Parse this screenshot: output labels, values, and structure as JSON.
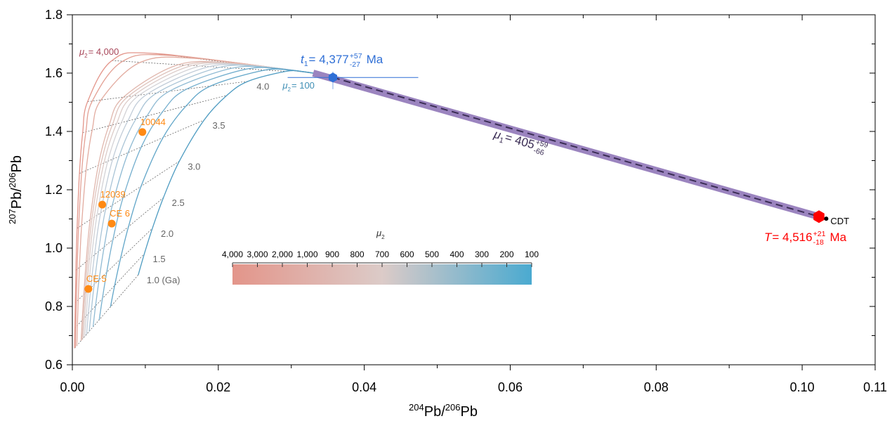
{
  "chart_data": {
    "type": "line",
    "xlabel": [
      "204",
      "Pb/",
      "206",
      "Pb"
    ],
    "ylabel": [
      "207",
      "Pb/",
      "206",
      "Pb"
    ],
    "xlim": [
      0,
      0.11
    ],
    "ylim": [
      0.6,
      1.8
    ],
    "xticks": [
      {
        "value": 0,
        "label": "0.00"
      },
      0.02,
      0.04,
      0.06,
      0.08,
      {
        "value": 0.1,
        "label": "0.10"
      },
      0.11
    ],
    "yticks": [
      0.6,
      0.8,
      {
        "value": 1,
        "label": "1.0"
      },
      1.2,
      1.4,
      1.6,
      1.8
    ],
    "xminor": [
      0.01,
      0.03,
      0.05,
      0.07,
      0.09
    ],
    "yminor": [
      0.7,
      0.9,
      1.1,
      1.3,
      1.5,
      1.7
    ],
    "series": [
      {
        "color": "#e3958a",
        "x": [
          0.033,
          0.01141,
          0.00543,
          0.00209,
          0.00142,
          0.00097,
          0.00065,
          0.00049,
          0.00041,
          0.00035,
          0.00031
        ],
        "y": [
          1.6,
          1.667,
          1.643,
          1.502,
          1.396,
          1.256,
          1.068,
          0.924,
          0.813,
          0.726,
          0.657
        ]
      },
      {
        "color": "#e3a094",
        "x": [
          0.033,
          0.01364,
          0.00686,
          0.00273,
          0.00186,
          0.00128,
          0.00086,
          0.00066,
          0.00054,
          0.00046,
          0.00041
        ],
        "y": [
          1.6,
          1.66,
          1.64,
          1.504,
          1.399,
          1.26,
          1.072,
          0.927,
          0.816,
          0.729,
          0.66
        ]
      },
      {
        "color": "#e2ab9f",
        "x": [
          0.033,
          0.01696,
          0.00932,
          0.00393,
          0.00272,
          0.00188,
          0.00127,
          0.00097,
          0.0008,
          0.00069,
          0.00061
        ],
        "y": [
          1.6,
          1.65,
          1.637,
          1.508,
          1.405,
          1.266,
          1.078,
          0.934,
          0.822,
          0.735,
          0.665
        ]
      },
      {
        "color": "#e0b6ac",
        "x": [
          0.033,
          0.0224,
          0.01454,
          0.00703,
          0.00502,
          0.00356,
          0.00244,
          0.00189,
          0.00157,
          0.00135,
          0.0012
        ],
        "y": [
          1.6,
          1.633,
          1.629,
          1.518,
          1.42,
          1.284,
          1.098,
          0.953,
          0.841,
          0.752,
          0.682
        ]
      },
      {
        "color": "#dec2bb",
        "x": [
          0.033,
          0.02314,
          0.0154,
          0.00763,
          0.00549,
          0.00391,
          0.00269,
          0.00209,
          0.00173,
          0.00149,
          0.00133
        ],
        "y": [
          1.6,
          1.63,
          1.627,
          1.52,
          1.423,
          1.288,
          1.102,
          0.957,
          0.845,
          0.756,
          0.686
        ]
      },
      {
        "color": "#dccbc8",
        "x": [
          0.033,
          0.02394,
          0.01637,
          0.00834,
          0.00605,
          0.00433,
          0.003,
          0.00233,
          0.00193,
          0.00167,
          0.00148
        ],
        "y": [
          1.6,
          1.628,
          1.626,
          1.522,
          1.426,
          1.292,
          1.107,
          0.962,
          0.85,
          0.761,
          0.691
        ]
      },
      {
        "color": "#d3d2d6",
        "x": [
          0.033,
          0.02479,
          0.01747,
          0.0092,
          0.00673,
          0.00486,
          0.00338,
          0.00264,
          0.00219,
          0.0019,
          0.00169
        ],
        "y": [
          1.6,
          1.625,
          1.624,
          1.525,
          1.431,
          1.298,
          1.113,
          0.969,
          0.856,
          0.767,
          0.696
        ]
      },
      {
        "color": "#c1ccd8",
        "x": [
          0.033,
          0.0257,
          0.01873,
          0.01026,
          0.0076,
          0.00553,
          0.00388,
          0.00304,
          0.00253,
          0.00219,
          0.00195
        ],
        "y": [
          1.6,
          1.622,
          1.622,
          1.528,
          1.436,
          1.305,
          1.121,
          0.977,
          0.864,
          0.775,
          0.704
        ]
      },
      {
        "color": "#a9c4d6",
        "x": [
          0.033,
          0.02669,
          0.02019,
          0.01159,
          0.00872,
          0.00642,
          0.00455,
          0.00358,
          0.00299,
          0.0026,
          0.00231
        ],
        "y": [
          1.6,
          1.62,
          1.62,
          1.532,
          1.443,
          1.315,
          1.132,
          0.988,
          0.875,
          0.786,
          0.714
        ]
      },
      {
        "color": "#8fbad3",
        "x": [
          0.033,
          0.02775,
          0.02189,
          0.01331,
          0.01022,
          0.00766,
          0.00549,
          0.00436,
          0.00366,
          0.00318,
          0.00284
        ],
        "y": [
          1.6,
          1.616,
          1.617,
          1.538,
          1.453,
          1.328,
          1.148,
          1.004,
          0.891,
          0.802,
          0.73
        ]
      },
      {
        "color": "#75afce",
        "x": [
          0.033,
          0.02889,
          0.0239,
          0.01565,
          0.01235,
          0.00947,
          0.00694,
          0.00556,
          0.0047,
          0.00411,
          0.00368
        ],
        "y": [
          1.6,
          1.613,
          1.614,
          1.545,
          1.467,
          1.348,
          1.172,
          1.029,
          0.916,
          0.826,
          0.754
        ]
      },
      {
        "color": "#60a5c8",
        "x": [
          0.033,
          0.03015,
          0.02632,
          0.01897,
          0.01561,
          0.01243,
          0.00942,
          0.0077,
          0.00658,
          0.0058,
          0.00523
        ],
        "y": [
          1.6,
          1.609,
          1.61,
          1.556,
          1.488,
          1.379,
          1.212,
          1.074,
          0.962,
          0.872,
          0.799
        ]
      },
      {
        "color": "#4d9bc1",
        "x": [
          0.033,
          0.03151,
          0.02928,
          0.02409,
          0.02119,
          0.01805,
          0.01466,
          0.01248,
          0.01097,
          0.00987,
          0.00903
        ],
        "y": [
          1.6,
          1.605,
          1.606,
          1.572,
          1.524,
          1.439,
          1.298,
          1.173,
          1.068,
          0.981,
          0.908
        ]
      }
    ],
    "age_labels": [
      null,
      null,
      null,
      "4.0",
      null,
      "3.5",
      "3.0",
      "2.5",
      "2.0",
      "1.5",
      "1.0 (Ga)"
    ],
    "curve_labels": {
      "max": {
        "symbol": "μ",
        "sub": "2",
        "text": "= 4,000",
        "color": "#a8475a"
      },
      "min": {
        "symbol": "μ",
        "sub": "2",
        "text": "= 100",
        "color": "#3f8fb5"
      }
    },
    "samples": {
      "color": "#ff8a14",
      "points": [
        {
          "label": "10044",
          "x": 0.0096,
          "y": 1.398
        },
        {
          "label": "12039",
          "x": 0.0041,
          "y": 1.149
        },
        {
          "label": "CE 6",
          "x": 0.0054,
          "y": 1.084
        },
        {
          "label": "CE 5",
          "x": 0.0022,
          "y": 0.86
        }
      ]
    },
    "t1": {
      "x": 0.0357,
      "y": 1.585,
      "xerr": [
        0.0295,
        0.0474
      ],
      "yerr": [
        1.545,
        1.605
      ],
      "color": "#2f6fd6",
      "label": {
        "symbol": "t",
        "sub": "1",
        "text": "= 4,377",
        "plus": "+57",
        "minus": "-27",
        "unit": "Ma"
      }
    },
    "T": {
      "x": 0.1023,
      "y": 1.108,
      "color": "#ff0000",
      "label": {
        "symbol": "T",
        "text": "= 4,516",
        "plus": "+21",
        "minus": "-18",
        "unit": "Ma"
      }
    },
    "cdt": {
      "x": 0.1033,
      "y": 1.101,
      "label": "CDT"
    },
    "mu1": {
      "color": "#9b84bf",
      "line_color": "#3b2d55",
      "label": {
        "symbol": "μ",
        "sub": "1",
        "text": "= 405",
        "plus": "+59",
        "minus": "-66"
      }
    },
    "colorbar": {
      "symbol": "μ",
      "sub": "2",
      "ticks": [
        {
          "value": 4000,
          "label": "4,000"
        },
        {
          "value": 3000,
          "label": "3,000"
        },
        {
          "value": 2000,
          "label": "2,000"
        },
        {
          "value": 1000,
          "label": "1,000"
        },
        900,
        800,
        700,
        600,
        500,
        400,
        300,
        200,
        100
      ],
      "colors": [
        "#e3958a",
        "#dccbc8",
        "#4aaad0"
      ]
    }
  }
}
